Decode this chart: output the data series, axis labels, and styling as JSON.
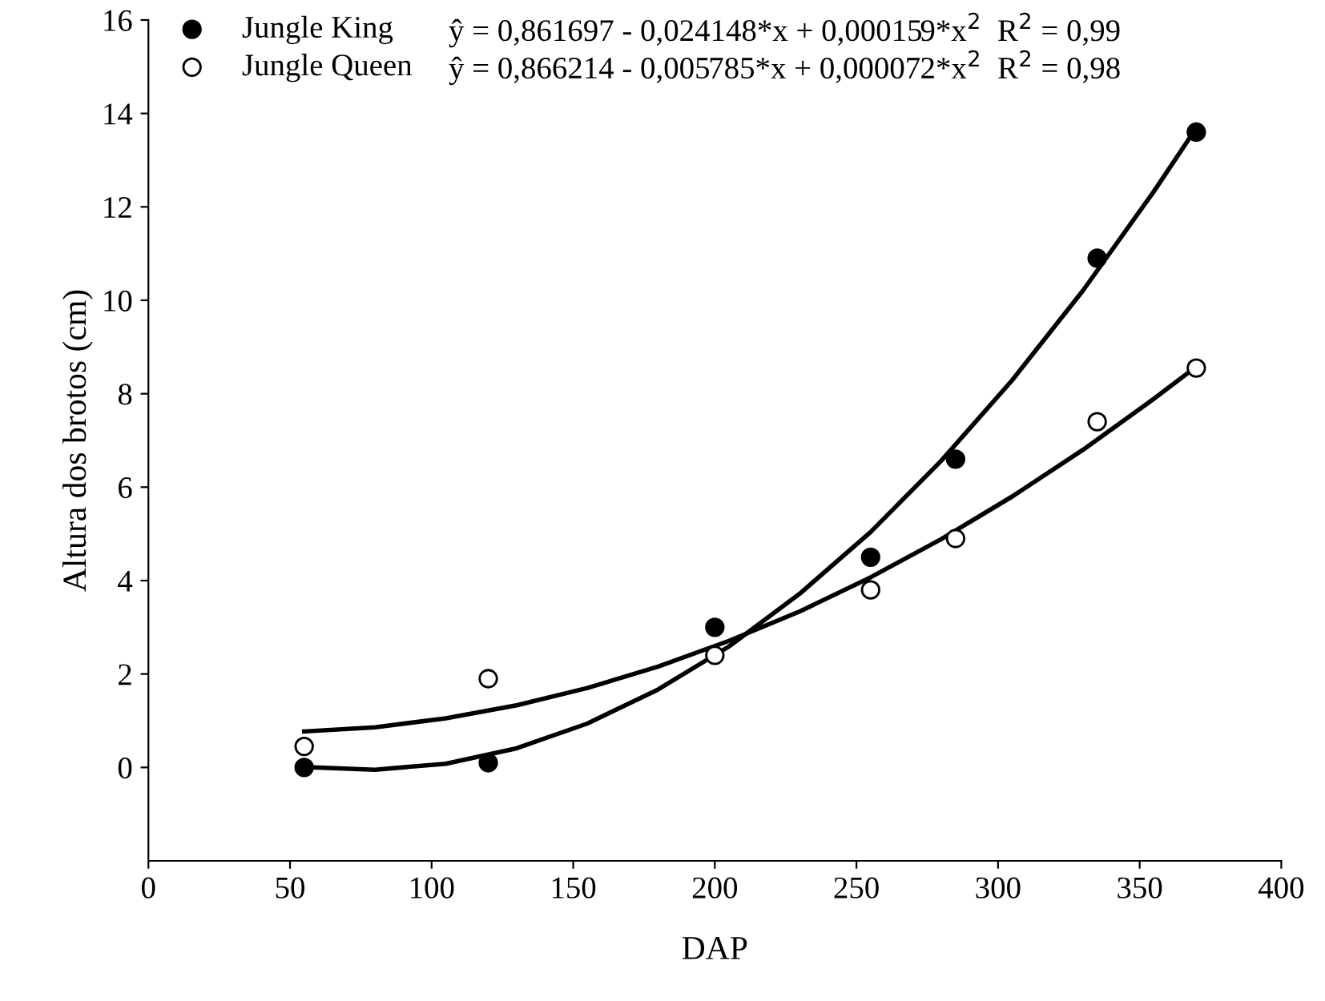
{
  "chart_data": {
    "type": "scatter",
    "xlabel": "DAP",
    "ylabel": "Altura dos brotos (cm)",
    "xlim": [
      0,
      400
    ],
    "xticks": [
      0,
      50,
      100,
      150,
      200,
      250,
      300,
      350,
      400
    ],
    "ylim": [
      -2,
      16
    ],
    "yticks": [
      0,
      2,
      4,
      6,
      8,
      10,
      12,
      14,
      16
    ],
    "grid": false,
    "legend": "top left",
    "series": [
      {
        "name": "Jungle King",
        "marker": "circle",
        "color": "#000000",
        "x": [
          55,
          120,
          200,
          255,
          285,
          335,
          370
        ],
        "values": [
          0.0,
          0.1,
          3.0,
          4.5,
          6.6,
          10.9,
          13.6
        ]
      },
      {
        "name": "Jungle Queen",
        "marker": "circle",
        "color": "#ffffff",
        "x": [
          55,
          120,
          200,
          255,
          285,
          335,
          370
        ],
        "values": [
          0.45,
          1.9,
          2.4,
          3.8,
          4.9,
          7.4,
          8.55
        ]
      },
      {
        "type": "line",
        "color": "#000000",
        "line_style": "solid",
        "x": [
          55,
          80,
          105,
          130,
          155,
          180,
          205,
          230,
          255,
          280,
          305,
          330,
          355,
          370
        ],
        "values": [
          0.01,
          -0.05,
          0.08,
          0.41,
          0.94,
          1.67,
          2.59,
          3.72,
          5.04,
          6.57,
          8.29,
          10.21,
          12.33,
          13.69
        ]
      },
      {
        "type": "line",
        "color": "#000000",
        "line_style": "solid",
        "x": [
          55,
          80,
          105,
          130,
          155,
          180,
          205,
          230,
          255,
          280,
          305,
          330,
          355,
          370
        ],
        "values": [
          0.77,
          0.86,
          1.05,
          1.33,
          1.7,
          2.16,
          2.71,
          3.34,
          4.07,
          4.89,
          5.8,
          6.8,
          7.89,
          8.58
        ]
      }
    ],
    "annotations": [
      "ŷ = 0,861697 - 0,024148*x + 0,000159*x$^{2}$  R$^{2}$ = 0,99",
      "ŷ = 0,866214 - 0,005785*x + 0,000072*x$^{2}$  R$^{2}$ = 0,98"
    ]
  }
}
